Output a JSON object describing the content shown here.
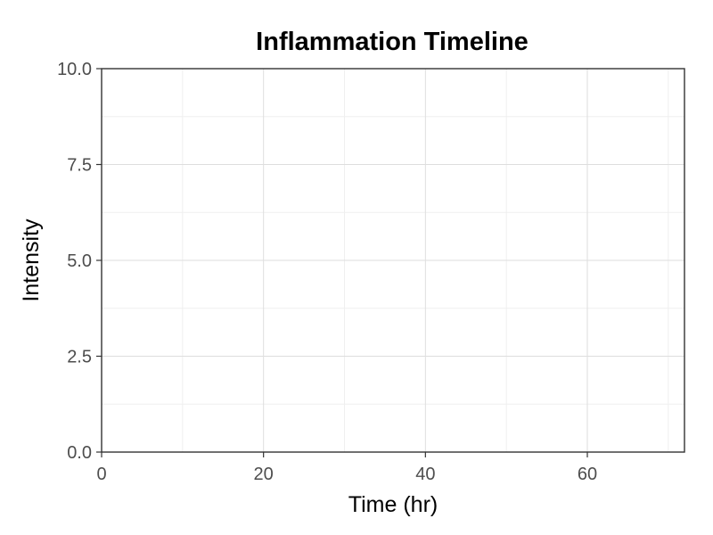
{
  "chart_data": {
    "type": "line",
    "title": "Inflammation Timeline",
    "xlabel": "Time (hr)",
    "ylabel": "Intensity",
    "xlim": [
      0,
      72
    ],
    "ylim": [
      0,
      10
    ],
    "x_ticks": [
      0,
      20,
      40,
      60
    ],
    "x_tick_labels": [
      "0",
      "20",
      "40",
      "60"
    ],
    "x_minor_ticks": [
      10,
      30,
      50,
      70
    ],
    "y_ticks": [
      0,
      2.5,
      5,
      7.5,
      10
    ],
    "y_tick_labels": [
      "0.0",
      "2.5",
      "5.0",
      "7.5",
      "10.0"
    ],
    "y_minor_ticks": [
      1.25,
      3.75,
      6.25,
      8.75
    ],
    "grid": true,
    "series": []
  }
}
